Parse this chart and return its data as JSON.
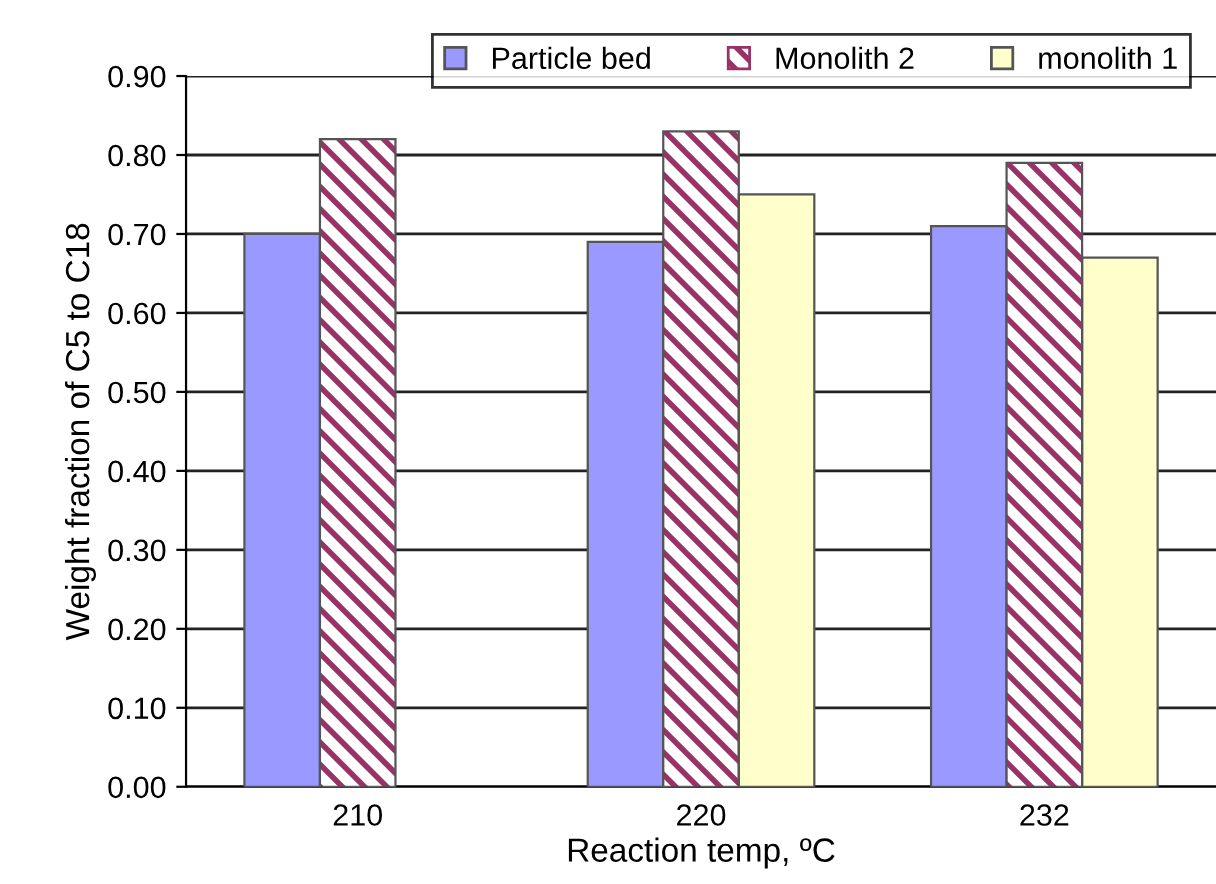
{
  "chart_data": {
    "type": "bar",
    "xlabel": "Reaction temp, ºC",
    "ylabel": "Weight fraction of C5 to C18",
    "categories": [
      "210",
      "220",
      "232"
    ],
    "series": [
      {
        "name": "Particle bed",
        "color": "#9999ff",
        "values": [
          0.7,
          0.69,
          0.71
        ]
      },
      {
        "name": "Monolith 2",
        "color": "#993366",
        "values": [
          0.82,
          0.83,
          0.79
        ]
      },
      {
        "name": "monolith 1",
        "color": "#ffffcc",
        "values": [
          null,
          0.75,
          0.67
        ]
      }
    ],
    "ylim": [
      0,
      0.9
    ],
    "yticks": [
      {
        "value": 0,
        "label": "0.00"
      },
      {
        "value": 0.1,
        "label": "0.10"
      },
      {
        "value": 0.2,
        "label": "0.20"
      },
      {
        "value": 0.3,
        "label": "0.30"
      },
      {
        "value": 0.4,
        "label": "0.40"
      },
      {
        "value": 0.5,
        "label": "0.50"
      },
      {
        "value": 0.6,
        "label": "0.60"
      },
      {
        "value": 0.7,
        "label": "0.70"
      },
      {
        "value": 0.8,
        "label": "0.80"
      },
      {
        "value": 0.9,
        "label": "0.90"
      }
    ],
    "grid": "y",
    "legend": "top right"
  }
}
